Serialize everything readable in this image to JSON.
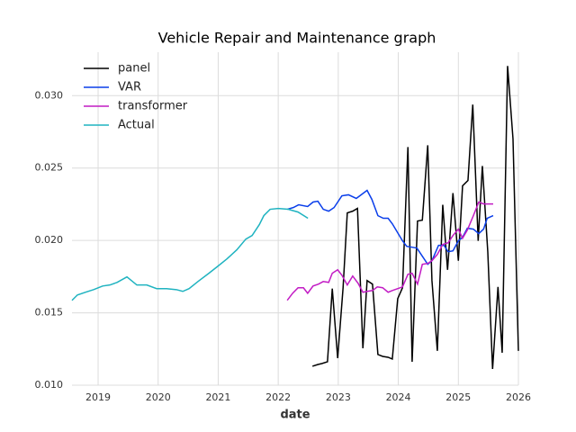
{
  "chart_data": {
    "type": "line",
    "title": "Vehicle Repair and Maintenance graph",
    "x_label": "date",
    "xlim": [
      2018.565,
      2026.0
    ],
    "xticks": [
      2019,
      2020,
      2021,
      2022,
      2023,
      2024,
      2025,
      2026
    ],
    "ylim": [
      0.01,
      0.033
    ],
    "yticks": [
      {
        "value": 0.01,
        "label": "0.010"
      },
      0.015,
      {
        "value": 0.02,
        "label": "0.020"
      },
      0.025,
      {
        "value": 0.03,
        "label": "0.030"
      }
    ],
    "grid": true,
    "legend": "upper left",
    "series": [
      {
        "name": "panel",
        "color": "#000000",
        "x": [
          2022.57,
          2022.66,
          2022.73,
          2022.82,
          2022.9,
          2022.99,
          2023.08,
          2023.15,
          2023.24,
          2023.32,
          2023.41,
          2023.48,
          2023.57,
          2023.66,
          2023.74,
          2023.83,
          2023.9,
          2023.99,
          2024.07,
          2024.16,
          2024.23,
          2024.32,
          2024.4,
          2024.49,
          2024.56,
          2024.65,
          2024.74,
          2024.82,
          2024.91,
          2025.0,
          2025.07,
          2025.16,
          2025.24,
          2025.33,
          2025.4,
          2025.49,
          2025.57,
          2025.66,
          2025.73,
          2025.82,
          2025.91,
          2026.0
        ],
        "values": [
          0.01131,
          0.01143,
          0.0115,
          0.01162,
          0.01667,
          0.01187,
          0.01673,
          0.0219,
          0.02202,
          0.02221,
          0.01255,
          0.01723,
          0.01698,
          0.01212,
          0.01199,
          0.01193,
          0.01181,
          0.01598,
          0.01673,
          0.02645,
          0.01162,
          0.02134,
          0.0214,
          0.02657,
          0.01723,
          0.01237,
          0.02246,
          0.01797,
          0.02327,
          0.0186,
          0.02377,
          0.02414,
          0.02938,
          0.01997,
          0.02514,
          0.01922,
          0.01112,
          0.01679,
          0.01224,
          0.03205,
          0.02701,
          0.01237
        ]
      },
      {
        "name": "VAR",
        "color": "#0a3eea",
        "x": [
          2022.15,
          2022.25,
          2022.34,
          2022.49,
          2022.58,
          2022.66,
          2022.75,
          2022.84,
          2022.93,
          2023.06,
          2023.17,
          2023.3,
          2023.48,
          2023.56,
          2023.66,
          2023.75,
          2023.83,
          2023.9,
          2024.07,
          2024.14,
          2024.23,
          2024.31,
          2024.4,
          2024.49,
          2024.56,
          2024.67,
          2024.76,
          2024.83,
          2024.91,
          2025.0,
          2025.07,
          2025.15,
          2025.25,
          2025.34,
          2025.42,
          2025.48,
          2025.58
        ],
        "values": [
          0.02215,
          0.02227,
          0.02246,
          0.02234,
          0.02265,
          0.02271,
          0.02215,
          0.02202,
          0.02227,
          0.02308,
          0.02315,
          0.0229,
          0.02346,
          0.02283,
          0.02171,
          0.02153,
          0.02153,
          0.02115,
          0.01997,
          0.01959,
          0.01953,
          0.01947,
          0.01891,
          0.01835,
          0.0186,
          0.01966,
          0.01966,
          0.01922,
          0.01928,
          0.01997,
          0.02022,
          0.02084,
          0.02078,
          0.02047,
          0.02078,
          0.02153,
          0.02171
        ]
      },
      {
        "name": "transformer",
        "color": "#c21bc4",
        "x": [
          2022.15,
          2022.24,
          2022.33,
          2022.42,
          2022.49,
          2022.58,
          2022.67,
          2022.75,
          2022.84,
          2022.9,
          2022.99,
          2023.06,
          2023.15,
          2023.24,
          2023.33,
          2023.41,
          2023.48,
          2023.57,
          2023.65,
          2023.74,
          2023.83,
          2023.9,
          2023.99,
          2024.07,
          2024.16,
          2024.23,
          2024.32,
          2024.4,
          2024.49,
          2024.56,
          2024.65,
          2024.74,
          2024.83,
          2024.91,
          2025.0,
          2025.07,
          2025.15,
          2025.25,
          2025.34,
          2025.42,
          2025.51,
          2025.58
        ],
        "values": [
          0.01586,
          0.01635,
          0.01673,
          0.01673,
          0.01635,
          0.01685,
          0.01698,
          0.01716,
          0.0171,
          0.01773,
          0.01797,
          0.0176,
          0.01692,
          0.01754,
          0.01704,
          0.01642,
          0.01648,
          0.01654,
          0.01679,
          0.01673,
          0.01642,
          0.01654,
          0.01667,
          0.01679,
          0.01766,
          0.01773,
          0.01698,
          0.01835,
          0.01841,
          0.0186,
          0.01903,
          0.01972,
          0.01984,
          0.02034,
          0.02078,
          0.02015,
          0.02072,
          0.02171,
          0.02265,
          0.02252,
          0.02252,
          0.02252
        ]
      },
      {
        "name": "Actual",
        "color": "#1fb3c0",
        "x": [
          2018.565,
          2018.655,
          2018.79,
          2018.925,
          2019.075,
          2019.195,
          2019.315,
          2019.48,
          2019.645,
          2019.81,
          2019.975,
          2020.14,
          2020.305,
          2020.41,
          2020.515,
          2020.665,
          2020.845,
          2020.995,
          2021.145,
          2021.31,
          2021.46,
          2021.565,
          2021.685,
          2021.76,
          2021.865,
          2022.0,
          2022.165,
          2022.33,
          2022.495
        ],
        "values": [
          0.01586,
          0.01623,
          0.01642,
          0.0166,
          0.01685,
          0.01692,
          0.0171,
          0.01748,
          0.01692,
          0.01692,
          0.01667,
          0.01667,
          0.0166,
          0.01648,
          0.01667,
          0.01717,
          0.01773,
          0.01822,
          0.01872,
          0.01935,
          0.02009,
          0.02034,
          0.02109,
          0.02171,
          0.02215,
          0.02221,
          0.02215,
          0.02196,
          0.02153
        ]
      }
    ]
  }
}
